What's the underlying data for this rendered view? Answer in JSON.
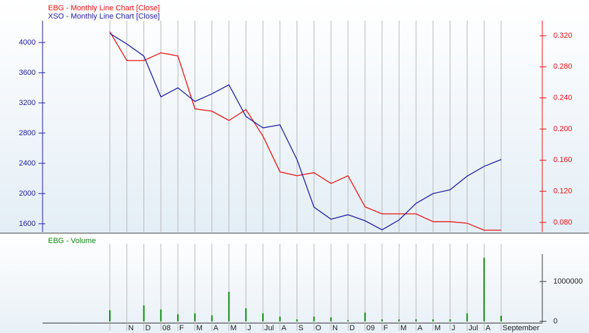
{
  "chart_data": [
    {
      "type": "line",
      "series": [
        {
          "name": "EBG - Monthly Line Chart [Close]",
          "color": "#e81010",
          "axis": "y2",
          "values": [
            0.325,
            0.288,
            0.288,
            0.298,
            0.294,
            0.226,
            0.223,
            0.211,
            0.225,
            0.191,
            0.145,
            0.14,
            0.144,
            0.13,
            0.14,
            0.1,
            0.091,
            0.091,
            0.091,
            0.081,
            0.081,
            0.079,
            0.07,
            0.07
          ]
        },
        {
          "name": "XSO - Monthly Line Chart [Close]",
          "color": "#1c1ca0",
          "values": [
            4120,
            3980,
            3820,
            3280,
            3400,
            3220,
            3320,
            3440,
            3020,
            2870,
            2910,
            2450,
            1820,
            1660,
            1720,
            1640,
            1520,
            1650,
            1870,
            2000,
            2050,
            2230,
            2360,
            2450
          ]
        }
      ],
      "ylim": [
        1490,
        4290
      ],
      "yticks": [
        1600,
        2000,
        2400,
        2800,
        3200,
        3600,
        4000
      ],
      "y2lim": [
        0.0676,
        0.3394
      ],
      "y2ticks": [
        {
          "value": 0.08,
          "label": "0.080"
        },
        {
          "value": 0.12,
          "label": "0.120"
        },
        {
          "value": 0.16,
          "label": "0.160"
        },
        {
          "value": 0.2,
          "label": "0.200"
        },
        {
          "value": 0.24,
          "label": "0.240"
        },
        {
          "value": 0.28,
          "label": "0.280"
        },
        {
          "value": 0.32,
          "label": "0.320"
        }
      ],
      "grid": true
    },
    {
      "type": "bar",
      "title": "EBG - Volume",
      "color": "#0a8a0a",
      "categories": [
        null,
        "N",
        "D",
        "08",
        "F",
        "M",
        "A",
        "M",
        "J",
        "Jul",
        "A",
        "S",
        "O",
        "N",
        "D",
        "09",
        "F",
        "M",
        "A",
        "M",
        "J",
        "Jul",
        "A",
        "September"
      ],
      "values": [
        280000,
        0,
        400000,
        300000,
        180000,
        200000,
        150000,
        740000,
        330000,
        200000,
        120000,
        50000,
        120000,
        100000,
        30000,
        220000,
        50000,
        50000,
        50000,
        50000,
        50000,
        200000,
        1600000,
        140000
      ],
      "ylim": [
        -34000,
        2207000
      ],
      "yticks": [
        0,
        1000000
      ],
      "grid": true
    }
  ]
}
